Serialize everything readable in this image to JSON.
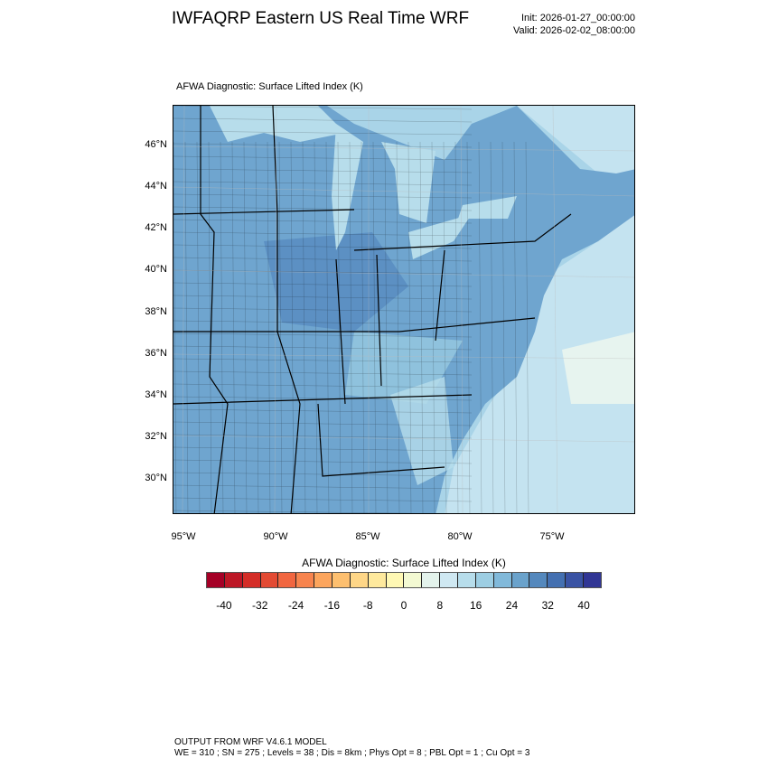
{
  "header": {
    "title": "IWFAQRP Eastern US Real Time WRF",
    "init": "Init: 2026-01-27_00:00:00",
    "valid": "Valid: 2026-02-02_08:00:00"
  },
  "plot": {
    "title": "AFWA Diagnostic: Surface Lifted Index   (K)",
    "lat_labels": [
      "46°N",
      "44°N",
      "42°N",
      "40°N",
      "38°N",
      "36°N",
      "34°N",
      "32°N",
      "30°N"
    ],
    "lon_labels": [
      "95°W",
      "90°W",
      "85°W",
      "80°W",
      "75°W"
    ]
  },
  "colorbar": {
    "title": "AFWA Diagnostic: Surface Lifted Index  (K)",
    "labels": [
      "-40",
      "-32",
      "-24",
      "-16",
      "-8",
      "0",
      "8",
      "16",
      "24",
      "32",
      "40"
    ],
    "colors": [
      "#a50026",
      "#bd1726",
      "#d42d27",
      "#e34a33",
      "#f16640",
      "#f7844e",
      "#fca55d",
      "#fdbf6f",
      "#fed687",
      "#fee99d",
      "#fff8b4",
      "#f3f9d2",
      "#e4f3ec",
      "#cfe8f2",
      "#b7ddeb",
      "#9dcee3",
      "#81b9da",
      "#6aa2cb",
      "#5488bd",
      "#4470b1",
      "#3a53a4",
      "#313695"
    ]
  },
  "footer": {
    "line1": "OUTPUT FROM WRF V4.6.1 MODEL",
    "line2": "WE = 310 ; SN = 275 ; Levels = 38 ; Dis = 8km ; Phys Opt = 8 ; PBL Opt = 1 ; Cu Opt = 3"
  }
}
